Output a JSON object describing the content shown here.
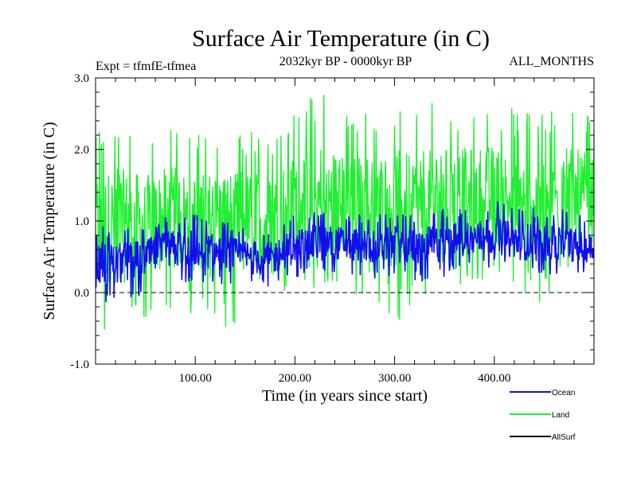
{
  "chart_data": {
    "type": "line",
    "title": "Surface Air Temperature (in C)",
    "subtitle_left": "Expt = tfmfE-tfmea",
    "subtitle_center": "2032kyr BP - 0000kyr BP",
    "subtitle_right": "ALL_MONTHS",
    "xlabel": "Time (in years since start)",
    "ylabel": "Surface Air Temperature (in C)",
    "xlim": [
      0,
      500
    ],
    "ylim": [
      -1.0,
      3.0
    ],
    "x_ticks": [
      100,
      200,
      300,
      400
    ],
    "x_tick_labels": [
      "100.00",
      "200.00",
      "300.00",
      "400.00"
    ],
    "y_ticks": [
      -1.0,
      0.0,
      1.0,
      2.0,
      3.0
    ],
    "y_tick_labels": [
      "-1.0",
      "0.0",
      "1.0",
      "2.0",
      "3.0"
    ],
    "reference_line": {
      "y": 0.0,
      "style": "dashed"
    },
    "series": [
      {
        "name": "Land",
        "color": "#22ee33",
        "x": [
          0,
          25,
          50,
          75,
          100,
          125,
          150,
          175,
          200,
          225,
          250,
          275,
          300,
          325,
          350,
          375,
          400,
          425,
          450,
          475,
          500
        ],
        "values": [
          0.95,
          1.0,
          0.9,
          1.05,
          1.05,
          1.0,
          1.0,
          0.95,
          1.25,
          1.25,
          1.2,
          1.15,
          1.25,
          1.2,
          1.25,
          1.3,
          1.3,
          1.25,
          1.25,
          1.2,
          1.2
        ],
        "range_min": [
          -0.6,
          -0.6,
          -0.35,
          -0.3,
          -0.4,
          -0.5,
          -0.4,
          -0.5,
          0.05,
          0.05,
          -0.1,
          0.0,
          -0.45,
          -0.2,
          0.1,
          0.1,
          0.15,
          -0.05,
          -0.2,
          0.2,
          0.3
        ],
        "range_max": [
          2.3,
          2.35,
          2.25,
          2.35,
          2.2,
          2.3,
          2.3,
          2.25,
          2.55,
          2.9,
          2.5,
          2.6,
          2.65,
          2.6,
          2.7,
          2.65,
          2.7,
          2.55,
          2.65,
          2.75,
          2.5
        ]
      },
      {
        "name": "Ocean",
        "color": "#1010ee",
        "x": [
          0,
          25,
          50,
          75,
          100,
          125,
          150,
          175,
          200,
          225,
          250,
          275,
          300,
          325,
          350,
          375,
          400,
          425,
          450,
          475,
          500
        ],
        "values": [
          0.4,
          0.45,
          0.5,
          0.6,
          0.6,
          0.55,
          0.5,
          0.45,
          0.65,
          0.7,
          0.7,
          0.65,
          0.7,
          0.65,
          0.7,
          0.75,
          0.75,
          0.7,
          0.7,
          0.65,
          0.6
        ],
        "range_min": [
          -0.2,
          -0.2,
          0.0,
          0.1,
          0.15,
          0.1,
          0.05,
          0.05,
          0.2,
          0.2,
          0.25,
          0.2,
          0.2,
          0.15,
          0.2,
          0.3,
          0.35,
          0.25,
          0.2,
          0.25,
          0.25
        ],
        "range_max": [
          0.95,
          0.9,
          0.95,
          1.1,
          1.1,
          1.0,
          0.95,
          0.9,
          1.1,
          1.2,
          1.1,
          1.1,
          1.1,
          1.1,
          1.2,
          1.2,
          1.3,
          1.2,
          1.2,
          1.15,
          1.0
        ]
      },
      {
        "name": "AllSurf",
        "color": "#000000",
        "x": [],
        "values": []
      }
    ],
    "legend": {
      "placement": "bottom-right",
      "entries": [
        {
          "label": "Ocean",
          "color": "#1010ee"
        },
        {
          "label": "Land",
          "color": "#22ee33"
        },
        {
          "label": "AllSurf",
          "color": "#000000"
        }
      ]
    }
  }
}
